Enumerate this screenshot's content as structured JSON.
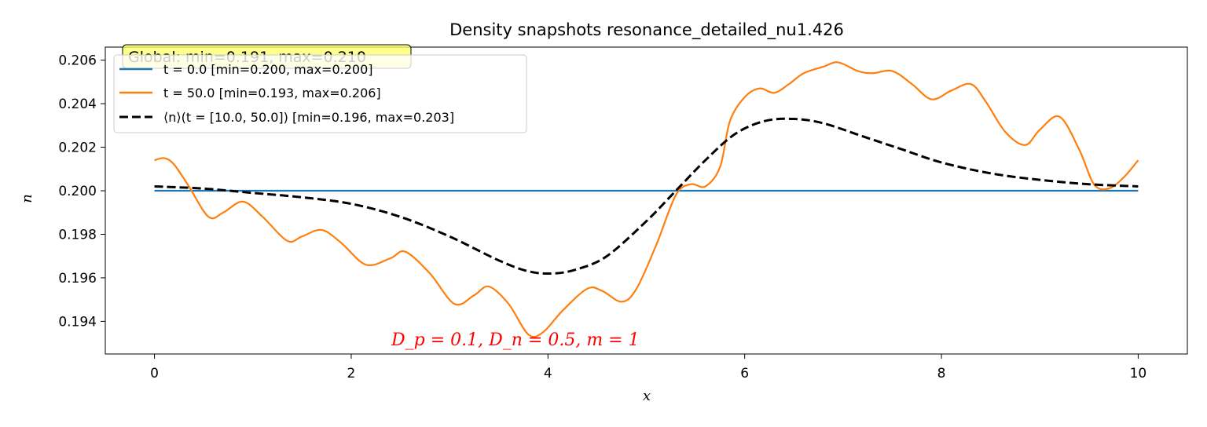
{
  "chart_data": {
    "type": "line",
    "title": "Density snapshots resonance_detailed_nu1.426",
    "xlabel": "x",
    "ylabel": "n",
    "xlim": [
      -0.5,
      10.5
    ],
    "ylim": [
      0.1925,
      0.2066
    ],
    "xticks": [
      0,
      2,
      4,
      6,
      8,
      10
    ],
    "xtick_labels": [
      "0",
      "2",
      "4",
      "6",
      "8",
      "10"
    ],
    "yticks": [
      0.194,
      0.196,
      0.198,
      0.2,
      0.202,
      0.204,
      0.206
    ],
    "ytick_labels": [
      "0.194",
      "0.196",
      "0.198",
      "0.200",
      "0.202",
      "0.204",
      "0.206"
    ],
    "grid": false,
    "legend_position": "upper-left",
    "global_annotation": "Global: min=0.191, max=0.210",
    "param_annotation": "D_p = 0.1, D_n = 0.5, m = 1",
    "series": [
      {
        "name": "t = 0.0 [min=0.200, max=0.200]",
        "legend_label": "t = 0.0 [min=0.200, max=0.200]",
        "color": "#1f77b4",
        "dash": "solid",
        "x": [
          0,
          10
        ],
        "y": [
          0.2,
          0.2
        ]
      },
      {
        "name": "t = 50.0 [min=0.193, max=0.206]",
        "legend_label": "t = 50.0 [min=0.193, max=0.206]",
        "color": "#ff7f0e",
        "dash": "solid",
        "x": [
          0,
          0.1,
          0.2,
          0.35,
          0.55,
          0.7,
          0.9,
          1.1,
          1.35,
          1.5,
          1.7,
          1.9,
          2.15,
          2.4,
          2.55,
          2.8,
          3.05,
          3.25,
          3.4,
          3.6,
          3.8,
          3.95,
          4.15,
          4.4,
          4.55,
          4.75,
          4.9,
          5.1,
          5.3,
          5.45,
          5.6,
          5.75,
          5.85,
          6.0,
          6.15,
          6.3,
          6.45,
          6.6,
          6.8,
          6.95,
          7.15,
          7.3,
          7.5,
          7.7,
          7.9,
          8.1,
          8.3,
          8.45,
          8.65,
          8.85,
          9.0,
          9.2,
          9.4,
          9.55,
          9.7,
          9.85,
          10.0
        ],
        "y": [
          0.2014,
          0.2015,
          0.2012,
          0.2002,
          0.1988,
          0.199,
          0.1995,
          0.1988,
          0.1977,
          0.1979,
          0.1982,
          0.1976,
          0.1966,
          0.1969,
          0.1972,
          0.1962,
          0.1948,
          0.1952,
          0.1956,
          0.1948,
          0.1934,
          0.1935,
          0.1945,
          0.1955,
          0.1954,
          0.1949,
          0.1955,
          0.1975,
          0.1998,
          0.2003,
          0.2002,
          0.2011,
          0.2032,
          0.2043,
          0.2047,
          0.2045,
          0.2049,
          0.2054,
          0.2057,
          0.2059,
          0.2055,
          0.2054,
          0.2055,
          0.2049,
          0.2042,
          0.2046,
          0.2049,
          0.2041,
          0.2027,
          0.2021,
          0.2028,
          0.2034,
          0.2019,
          0.2003,
          0.2001,
          0.2006,
          0.2014
        ]
      },
      {
        "name": "⟨n⟩(t = [10.0, 50.0]) [min=0.196, max=0.203]",
        "legend_label": "⟨n⟩(t = [10.0, 50.0]) [min=0.196, max=0.203]",
        "color": "#000000",
        "dash": "dashed",
        "x": [
          0,
          0.5,
          1.0,
          1.5,
          2.0,
          2.5,
          3.0,
          3.5,
          3.8,
          4.05,
          4.3,
          4.6,
          5.0,
          5.3,
          5.6,
          5.9,
          6.2,
          6.5,
          6.8,
          7.2,
          7.6,
          8.0,
          8.5,
          9.0,
          9.5,
          10.0
        ],
        "y": [
          0.2002,
          0.2001,
          0.1999,
          0.1997,
          0.1994,
          0.1988,
          0.1979,
          0.1968,
          0.1963,
          0.1962,
          0.1964,
          0.197,
          0.1986,
          0.2,
          0.2014,
          0.2026,
          0.2032,
          0.2033,
          0.2031,
          0.2025,
          0.2019,
          0.2013,
          0.2008,
          0.2005,
          0.2003,
          0.2002
        ]
      }
    ]
  }
}
